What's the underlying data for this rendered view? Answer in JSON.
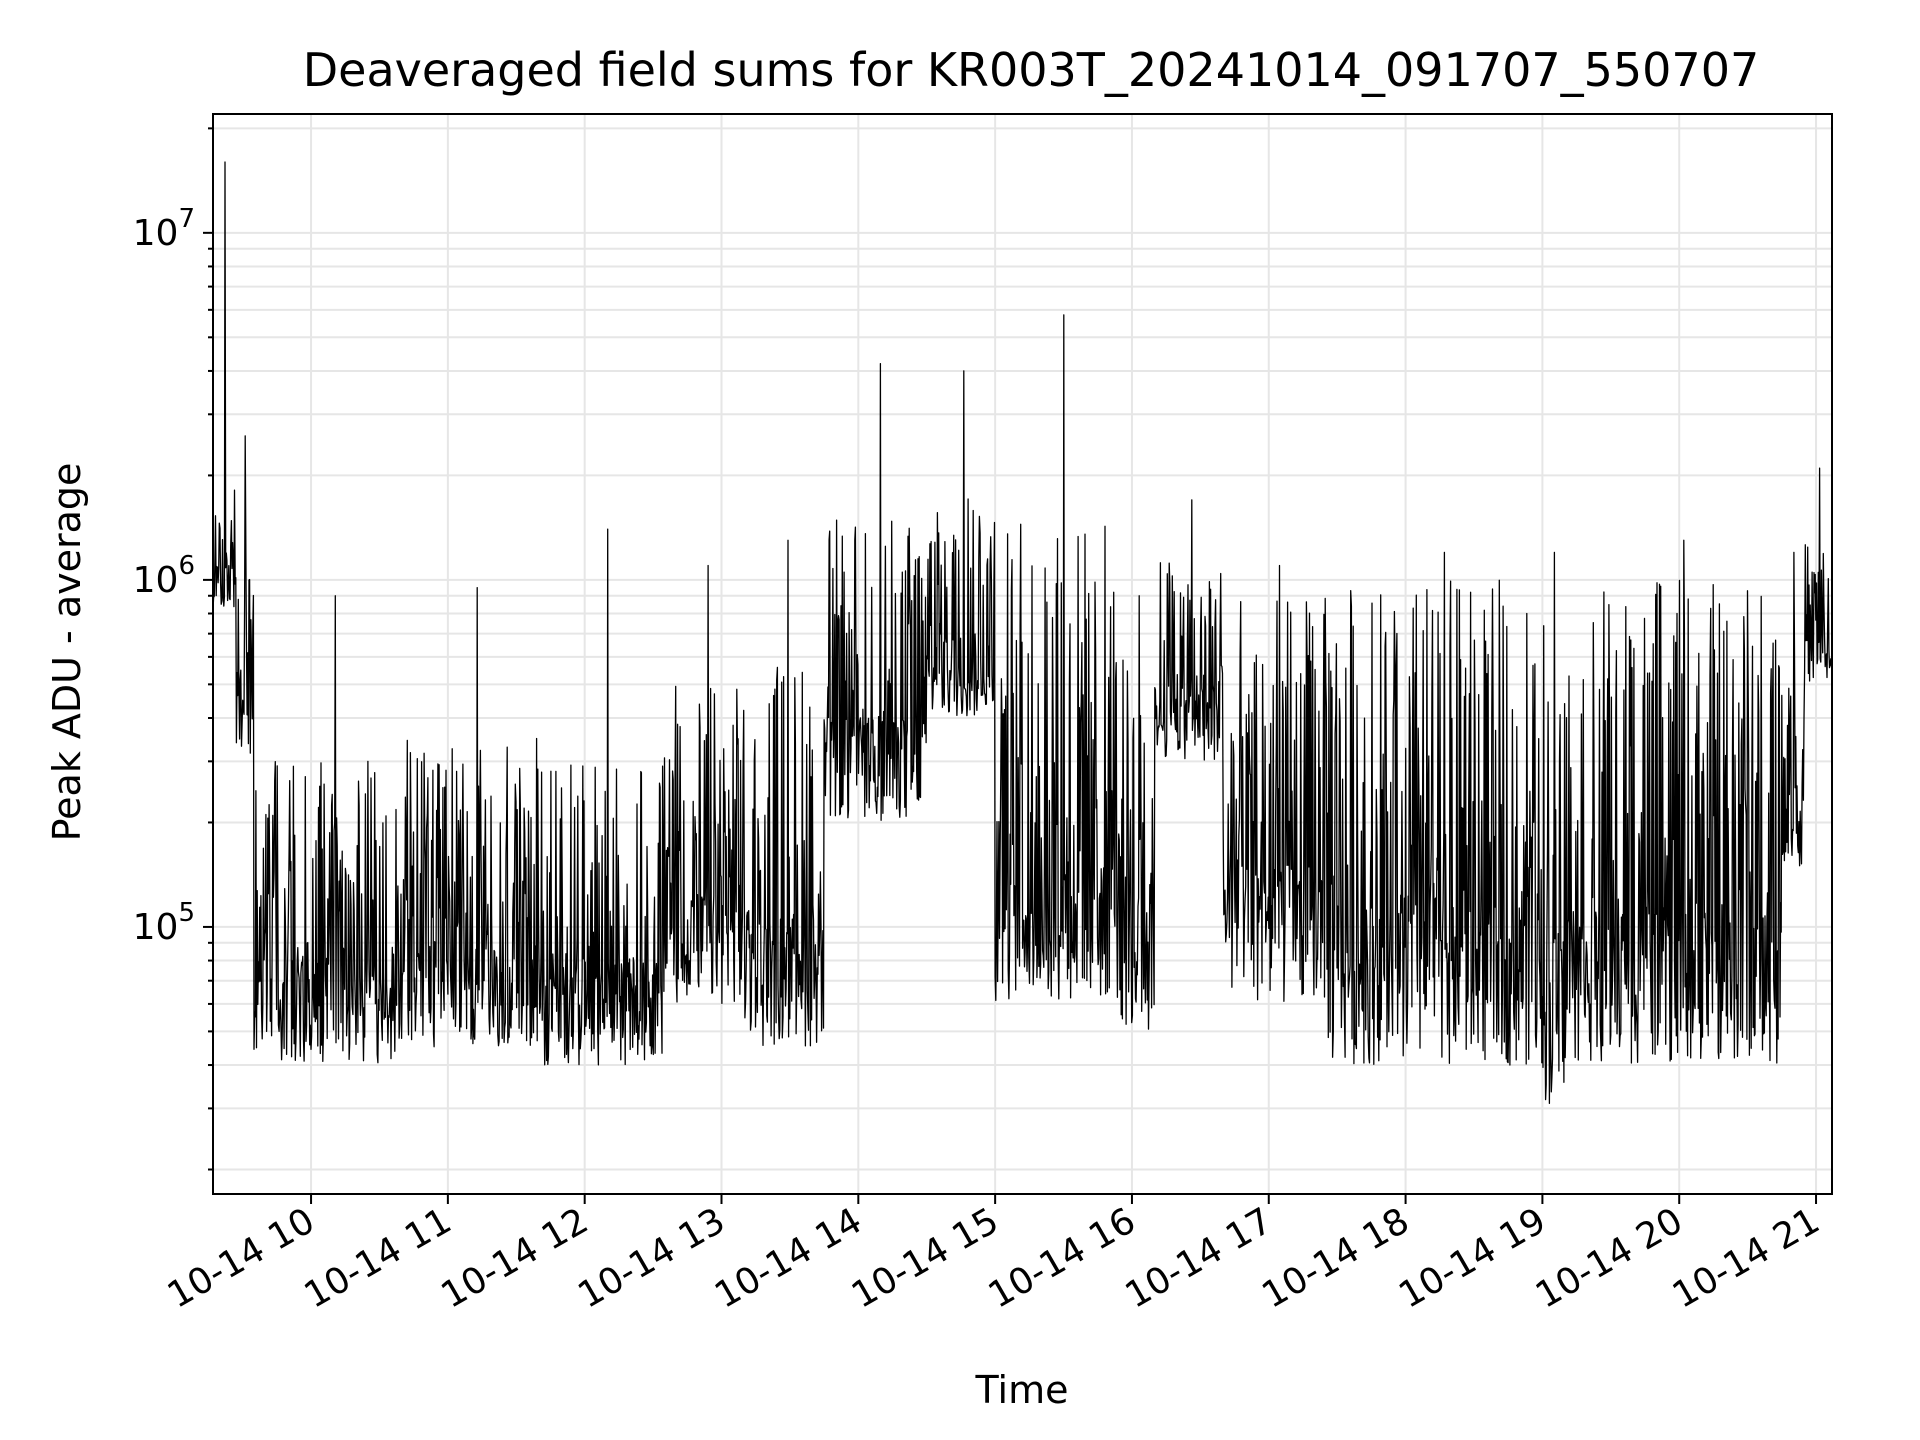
{
  "chart_data": {
    "type": "line",
    "title": "Deaveraged field sums for KR003T_20241014_091707_550707",
    "xlabel": "Time",
    "ylabel": "Peak ADU - average",
    "yscale": "log",
    "ylim": [
      17000,
      22000000
    ],
    "xlim": [
      "2024-10-14 09:17",
      "2024-10-14 21:07"
    ],
    "grid": true,
    "line_color": "#000000",
    "x_ticks": [
      "10-14 10",
      "10-14 11",
      "10-14 12",
      "10-14 13",
      "10-14 14",
      "10-14 15",
      "10-14 16",
      "10-14 17",
      "10-14 18",
      "10-14 19",
      "10-14 20",
      "10-14 21"
    ],
    "y_ticks": [
      {
        "value": 100000,
        "base": "10",
        "exp": "5"
      },
      {
        "value": 1000000,
        "base": "10",
        "exp": "6"
      },
      {
        "value": 10000000,
        "base": "10",
        "exp": "7"
      }
    ],
    "segments": [
      {
        "start": "2024-10-14 09:17",
        "end": "2024-10-14 09:27",
        "low": 800000,
        "high": 2000000,
        "spike": 16000000
      },
      {
        "start": "2024-10-14 09:27",
        "end": "2024-10-14 09:35",
        "low": 300000,
        "high": 1500000,
        "spike": 2600000
      },
      {
        "start": "2024-10-14 09:35",
        "end": "2024-10-14 10:40",
        "low": 40000,
        "high": 300000,
        "spike": 900000
      },
      {
        "start": "2024-10-14 10:40",
        "end": "2024-10-14 11:40",
        "low": 45000,
        "high": 350000,
        "spike": 950000
      },
      {
        "start": "2024-10-14 11:40",
        "end": "2024-10-14 12:35",
        "low": 40000,
        "high": 300000,
        "spike": 1400000
      },
      {
        "start": "2024-10-14 12:35",
        "end": "2024-10-14 13:10",
        "low": 60000,
        "high": 500000,
        "spike": 1100000
      },
      {
        "start": "2024-10-14 13:10",
        "end": "2024-10-14 13:45",
        "low": 45000,
        "high": 600000,
        "spike": 1300000
      },
      {
        "start": "2024-10-14 13:45",
        "end": "2024-10-14 14:30",
        "low": 200000,
        "high": 1500000,
        "spike": 4200000
      },
      {
        "start": "2024-10-14 14:30",
        "end": "2024-10-14 15:00",
        "low": 400000,
        "high": 2000000,
        "spike": 4000000
      },
      {
        "start": "2024-10-14 15:00",
        "end": "2024-10-14 15:55",
        "low": 60000,
        "high": 1500000,
        "spike": 5800000
      },
      {
        "start": "2024-10-14 15:55",
        "end": "2024-10-14 16:10",
        "low": 50000,
        "high": 600000,
        "spike": 900000
      },
      {
        "start": "2024-10-14 16:10",
        "end": "2024-10-14 16:40",
        "low": 300000,
        "high": 1200000,
        "spike": 1700000
      },
      {
        "start": "2024-10-14 16:40",
        "end": "2024-10-14 17:25",
        "low": 60000,
        "high": 900000,
        "spike": 1100000
      },
      {
        "start": "2024-10-14 17:25",
        "end": "2024-10-14 19:00",
        "low": 40000,
        "high": 1000000,
        "spike": 1200000
      },
      {
        "start": "2024-10-14 19:00",
        "end": "2024-10-14 19:10",
        "low": 30000,
        "high": 900000,
        "spike": 1200000
      },
      {
        "start": "2024-10-14 19:10",
        "end": "2024-10-14 20:45",
        "low": 40000,
        "high": 1000000,
        "spike": 1300000
      },
      {
        "start": "2024-10-14 20:45",
        "end": "2024-10-14 20:55",
        "low": 150000,
        "high": 700000,
        "spike": 1200000
      },
      {
        "start": "2024-10-14 20:55",
        "end": "2024-10-14 21:07",
        "low": 500000,
        "high": 1300000,
        "spike": 2100000
      }
    ]
  }
}
